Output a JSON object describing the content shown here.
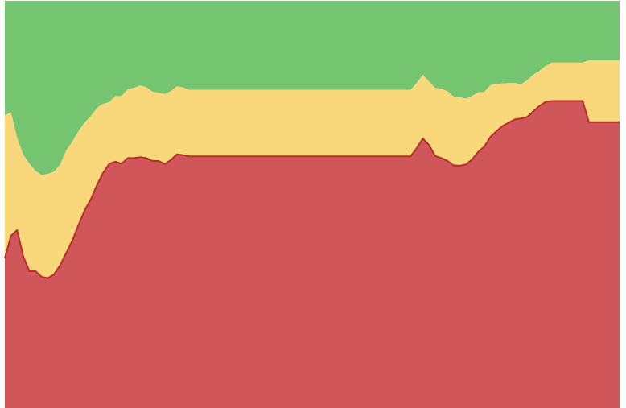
{
  "chart_data": {
    "type": "area",
    "stacked": true,
    "x": [
      0,
      1,
      2,
      3,
      4,
      5,
      6,
      7,
      8,
      9,
      10,
      11,
      12,
      13,
      14,
      15,
      16,
      17,
      18,
      19,
      20,
      21,
      22,
      23,
      24,
      25,
      26,
      27,
      28,
      29,
      30,
      31,
      32,
      33,
      34,
      35,
      36,
      37,
      38,
      39,
      40,
      41,
      42,
      43,
      44,
      45,
      46,
      47,
      48,
      49,
      50,
      51,
      52,
      53,
      54,
      55,
      56,
      57,
      58,
      59,
      60,
      61,
      62,
      63,
      64,
      65,
      66,
      67,
      68,
      69,
      70,
      71,
      72,
      73,
      74,
      75,
      76,
      77,
      78,
      79,
      80,
      81,
      82,
      83,
      84,
      85,
      86,
      87,
      88,
      89,
      90,
      91,
      92,
      93,
      94,
      95,
      96,
      97,
      98,
      99,
      100
    ],
    "ylim": [
      0,
      100
    ],
    "grid": false,
    "legend": "none",
    "series": [
      {
        "color": "#d05659",
        "line_color": "#b22f2a",
        "values": [
          36.8,
          42.3,
          43.7,
          37.2,
          33.6,
          33.6,
          32.2,
          31.9,
          32.8,
          35.1,
          38.1,
          41.2,
          45.0,
          48.6,
          51.3,
          54.8,
          57.8,
          60.0,
          60.5,
          60.0,
          61.4,
          61.4,
          61.6,
          61.4,
          60.7,
          60.7,
          59.9,
          60.9,
          62.3,
          62.1,
          61.8,
          61.8,
          61.8,
          61.8,
          61.8,
          61.8,
          61.8,
          61.8,
          61.8,
          61.8,
          61.8,
          61.8,
          61.8,
          61.8,
          61.8,
          61.8,
          61.8,
          61.8,
          61.8,
          61.8,
          61.8,
          61.8,
          61.8,
          61.8,
          61.8,
          61.8,
          61.8,
          61.8,
          61.8,
          61.8,
          61.8,
          61.8,
          61.8,
          61.8,
          61.8,
          61.8,
          61.8,
          63.8,
          66.2,
          64.6,
          61.9,
          61.4,
          60.7,
          59.6,
          59.5,
          59.8,
          61.0,
          62.9,
          64.2,
          66.6,
          68.0,
          69.3,
          70.1,
          70.9,
          71.1,
          71.5,
          72.9,
          74.2,
          75.2,
          75.4,
          75.4,
          75.4,
          75.4,
          75.4,
          75.4,
          70.2,
          70.2,
          70.2,
          70.2,
          70.2,
          70.2
        ]
      },
      {
        "color": "#f9d77b",
        "values": [
          35.1,
          30.3,
          22.6,
          25.0,
          26.4,
          24.6,
          25.0,
          25.6,
          25.2,
          24.7,
          25.2,
          24.3,
          23.0,
          21.6,
          20.4,
          18.9,
          16.9,
          15.1,
          16.1,
          16.6,
          16.9,
          17.2,
          17.6,
          17.4,
          17.0,
          16.7,
          17.2,
          16.9,
          16.7,
          16.6,
          16.3,
          16.3,
          16.3,
          16.3,
          16.3,
          16.3,
          16.3,
          16.3,
          16.3,
          16.3,
          16.3,
          16.3,
          16.3,
          16.3,
          16.3,
          16.3,
          16.3,
          16.3,
          16.3,
          16.3,
          16.3,
          16.3,
          16.3,
          16.3,
          16.3,
          16.3,
          16.3,
          16.3,
          16.3,
          16.3,
          16.3,
          16.3,
          16.3,
          16.3,
          16.3,
          16.3,
          16.3,
          16.0,
          15.6,
          15.6,
          16.7,
          17.0,
          17.1,
          16.9,
          16.8,
          16.2,
          15.6,
          14.6,
          13.4,
          12.7,
          11.6,
          10.4,
          9.7,
          8.9,
          8.4,
          9.0,
          9.0,
          8.6,
          8.8,
          9.4,
          9.4,
          9.4,
          9.4,
          9.4,
          9.4,
          15.2,
          15.2,
          15.2,
          15.2,
          15.2,
          15.2
        ]
      },
      {
        "color": "#75c46f",
        "values": [
          28.1,
          27.4,
          33.7,
          37.8,
          40.0,
          41.8,
          42.8,
          42.5,
          42.0,
          40.2,
          36.7,
          34.5,
          32.0,
          29.8,
          28.3,
          26.3,
          25.3,
          24.9,
          23.4,
          23.4,
          21.7,
          21.4,
          20.8,
          21.2,
          22.3,
          22.6,
          22.9,
          22.2,
          21.0,
          21.3,
          21.9,
          21.9,
          21.9,
          21.9,
          21.9,
          21.9,
          21.9,
          21.9,
          21.9,
          21.9,
          21.9,
          21.9,
          21.9,
          21.9,
          21.9,
          21.9,
          21.9,
          21.9,
          21.9,
          21.9,
          21.9,
          21.9,
          21.9,
          21.9,
          21.9,
          21.9,
          21.9,
          21.9,
          21.9,
          21.9,
          21.9,
          21.9,
          21.9,
          21.9,
          21.9,
          21.9,
          21.9,
          20.2,
          18.2,
          19.8,
          21.4,
          21.6,
          22.2,
          23.5,
          23.7,
          24.0,
          23.4,
          22.5,
          22.4,
          20.7,
          20.4,
          20.3,
          20.2,
          20.2,
          20.5,
          19.5,
          18.1,
          17.2,
          16.0,
          15.2,
          15.2,
          15.2,
          15.2,
          15.2,
          15.2,
          14.6,
          14.6,
          14.6,
          14.6,
          14.6,
          14.6
        ]
      }
    ]
  }
}
